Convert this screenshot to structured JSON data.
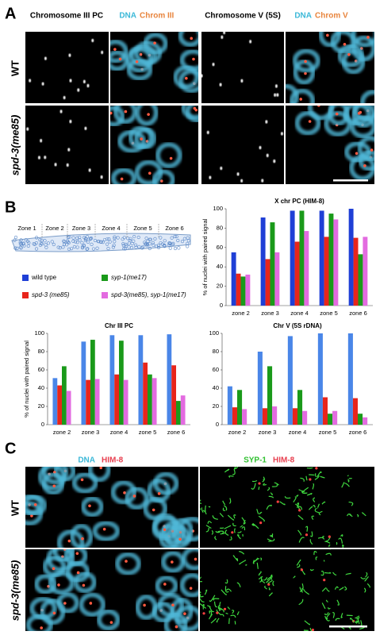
{
  "panel_a": {
    "label": "A",
    "headers": [
      "Chromosome III PC",
      "Chromosome V (5S)"
    ],
    "dna": "DNA",
    "chrom_labels": [
      "Chrom III",
      "Chrom V"
    ],
    "rows": [
      "WT",
      "spd-3(me85)"
    ]
  },
  "panel_b": {
    "label": "B",
    "zones": [
      "Zone 1",
      "Zone 2",
      "Zone 3",
      "Zone 4",
      "Zone 5",
      "Zone 6"
    ]
  },
  "panel_c": {
    "label": "C",
    "headers": [
      "DNA",
      "HIM-8",
      "SYP-1",
      "HIM-8"
    ],
    "rows": [
      "WT",
      "spd-3(me85)"
    ]
  },
  "chart_data": [
    {
      "type": "bar",
      "title": "X chr PC (HIM-8)",
      "y_label": "% of nuclei with paired signal",
      "categories": [
        "zone 2",
        "zone 3",
        "zone 4",
        "zone 5",
        "zone 6"
      ],
      "series": [
        {
          "name": "wild type",
          "color": "#1f3fd6",
          "values": [
            55,
            91,
            98,
            98,
            100
          ]
        },
        {
          "name": "spd-3 (me85)",
          "color": "#e8251b",
          "values": [
            33,
            48,
            66,
            71,
            70
          ]
        },
        {
          "name": "syp-1(me17)",
          "color": "#1a9a1a",
          "values": [
            30,
            86,
            98,
            95,
            53
          ]
        },
        {
          "name": "spd-3(me85), syp-1(me17)",
          "color": "#e36be0",
          "values": [
            32,
            55,
            77,
            89,
            71
          ]
        }
      ],
      "ylim": [
        0,
        100
      ],
      "yticks": [
        0,
        20,
        40,
        60,
        80,
        100
      ]
    },
    {
      "type": "bar",
      "title": "Chr III PC",
      "y_label": "% of nuclei with paired signal",
      "categories": [
        "zone 2",
        "zone 3",
        "zone 4",
        "zone 5",
        "zone 6"
      ],
      "series": [
        {
          "color": "#4a86e8",
          "values": [
            51,
            91,
            98,
            98,
            99
          ]
        },
        {
          "color": "#e8251b",
          "values": [
            43,
            49,
            55,
            68,
            65
          ]
        },
        {
          "color": "#1a9a1a",
          "values": [
            64,
            93,
            92,
            55,
            26
          ]
        },
        {
          "color": "#e36be0",
          "values": [
            37,
            50,
            49,
            51,
            32
          ]
        }
      ],
      "ylim": [
        0,
        100
      ],
      "yticks": [
        0,
        20,
        40,
        60,
        80,
        100
      ]
    },
    {
      "type": "bar",
      "title": "Chr V (5S rDNA)",
      "categories": [
        "zone 2",
        "zone 3",
        "zone 4",
        "zone 5",
        "zone 6"
      ],
      "series": [
        {
          "color": "#4a86e8",
          "values": [
            42,
            80,
            97,
            100,
            100
          ]
        },
        {
          "color": "#e8251b",
          "values": [
            19,
            18,
            18,
            30,
            29
          ]
        },
        {
          "color": "#1a9a1a",
          "values": [
            38,
            64,
            38,
            12,
            12
          ]
        },
        {
          "color": "#e36be0",
          "values": [
            17,
            20,
            15,
            15,
            8
          ]
        }
      ],
      "ylim": [
        0,
        100
      ],
      "yticks": [
        0,
        20,
        40,
        60,
        80,
        100
      ]
    }
  ]
}
